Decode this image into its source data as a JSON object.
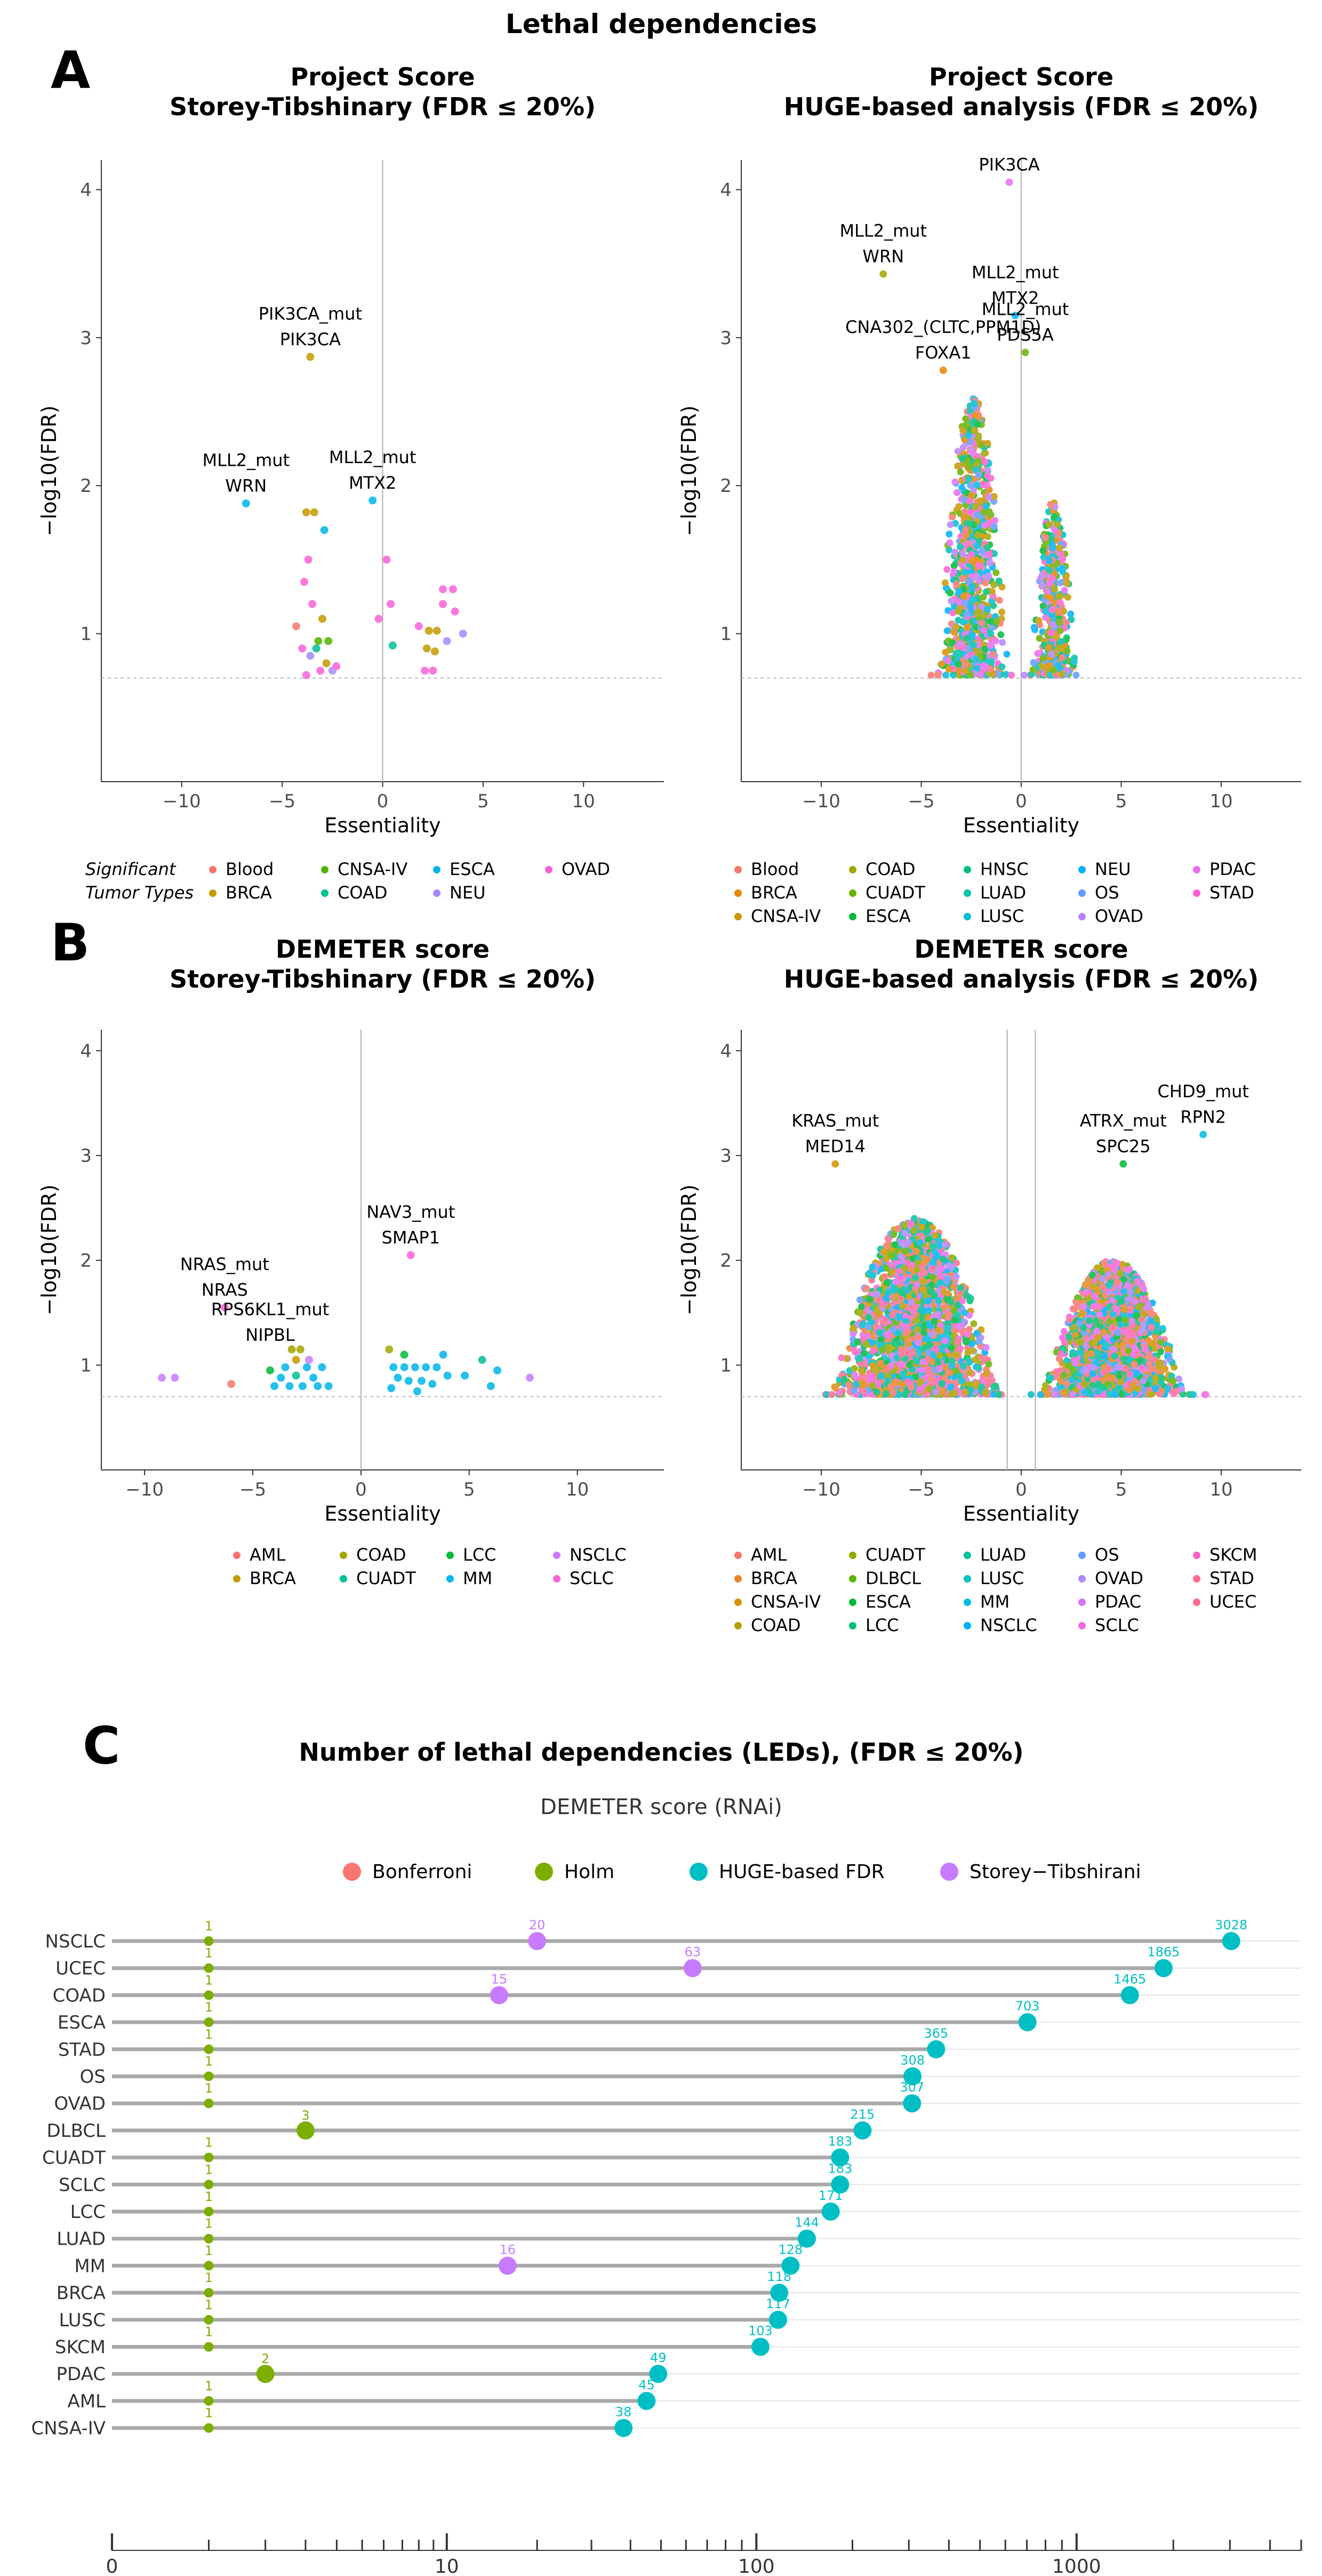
{
  "figure_title": "Lethal dependencies",
  "section_labels": [
    "A",
    "B",
    "C"
  ],
  "chart_data": [
    {
      "id": "A_left",
      "type": "scatter",
      "title": [
        "Project Score",
        "Storey-Tibshinary (FDR ≤ 20%)"
      ],
      "xlabel": "Essentiality",
      "ylabel": "−log10(FDR)",
      "xlim": [
        -14,
        14
      ],
      "ylim": [
        0,
        4.2
      ],
      "xticks": [
        -10,
        -5,
        0,
        5,
        10
      ],
      "yticks": [
        1,
        2,
        3,
        4
      ],
      "threshold": 0.7,
      "vline": 0,
      "annotations": [
        {
          "lines": [
            "PIK3CA_mut",
            "PIK3CA"
          ],
          "x": -3.6,
          "y": 2.87
        },
        {
          "lines": [
            "MLL2_mut",
            "WRN"
          ],
          "x": -6.8,
          "y": 1.88
        },
        {
          "lines": [
            "MLL2_mut",
            "MTX2"
          ],
          "x": -0.5,
          "y": 1.9
        }
      ],
      "points": [
        {
          "x": -3.6,
          "y": 2.87,
          "g": "BRCA"
        },
        {
          "x": -6.8,
          "y": 1.88,
          "g": "ESCA"
        },
        {
          "x": -0.5,
          "y": 1.9,
          "g": "ESCA"
        },
        {
          "x": -3.8,
          "y": 1.82,
          "g": "BRCA"
        },
        {
          "x": -3.4,
          "y": 1.82,
          "g": "BRCA"
        },
        {
          "x": -2.9,
          "y": 1.7,
          "g": "ESCA"
        },
        {
          "x": -3.7,
          "y": 1.5,
          "g": "OVAD"
        },
        {
          "x": -3.9,
          "y": 1.35,
          "g": "OVAD"
        },
        {
          "x": -4.3,
          "y": 1.05,
          "g": "Blood"
        },
        {
          "x": -3.5,
          "y": 1.2,
          "g": "OVAD"
        },
        {
          "x": -3.0,
          "y": 1.1,
          "g": "BRCA"
        },
        {
          "x": -3.2,
          "y": 0.95,
          "g": "CNSA-IV"
        },
        {
          "x": -2.7,
          "y": 0.95,
          "g": "CNSA-IV"
        },
        {
          "x": -3.3,
          "y": 0.9,
          "g": "COAD"
        },
        {
          "x": -3.6,
          "y": 0.85,
          "g": "NEU"
        },
        {
          "x": -2.8,
          "y": 0.8,
          "g": "BRCA"
        },
        {
          "x": -3.1,
          "y": 0.75,
          "g": "OVAD"
        },
        {
          "x": -3.8,
          "y": 0.72,
          "g": "OVAD"
        },
        {
          "x": -2.5,
          "y": 0.75,
          "g": "NEU"
        },
        {
          "x": -2.3,
          "y": 0.78,
          "g": "OVAD"
        },
        {
          "x": -4.0,
          "y": 0.9,
          "g": "OVAD"
        },
        {
          "x": 0.2,
          "y": 1.5,
          "g": "OVAD"
        },
        {
          "x": 0.4,
          "y": 1.2,
          "g": "OVAD"
        },
        {
          "x": -0.2,
          "y": 1.1,
          "g": "OVAD"
        },
        {
          "x": 0.5,
          "y": 0.92,
          "g": "COAD"
        },
        {
          "x": 1.8,
          "y": 1.05,
          "g": "OVAD"
        },
        {
          "x": 2.3,
          "y": 1.02,
          "g": "BRCA"
        },
        {
          "x": 2.7,
          "y": 1.02,
          "g": "BRCA"
        },
        {
          "x": 2.2,
          "y": 0.9,
          "g": "BRCA"
        },
        {
          "x": 2.6,
          "y": 0.88,
          "g": "BRCA"
        },
        {
          "x": 3.0,
          "y": 1.3,
          "g": "OVAD"
        },
        {
          "x": 3.5,
          "y": 1.3,
          "g": "OVAD"
        },
        {
          "x": 3.6,
          "y": 1.15,
          "g": "OVAD"
        },
        {
          "x": 3.2,
          "y": 0.95,
          "g": "NEU"
        },
        {
          "x": 2.1,
          "y": 0.75,
          "g": "OVAD"
        },
        {
          "x": 2.5,
          "y": 0.75,
          "g": "OVAD"
        },
        {
          "x": 4.0,
          "y": 1.0,
          "g": "NEU"
        },
        {
          "x": 3.0,
          "y": 1.2,
          "g": "OVAD"
        }
      ],
      "legend": {
        "title": [
          "Significant",
          "Tumor Types"
        ],
        "entries": [
          {
            "label": "Blood",
            "color": "#F8766D"
          },
          {
            "label": "BRCA",
            "color": "#C49A00"
          },
          {
            "label": "CNSA-IV",
            "color": "#53B400"
          },
          {
            "label": "COAD",
            "color": "#00C094"
          },
          {
            "label": "ESCA",
            "color": "#00B6EB"
          },
          {
            "label": "NEU",
            "color": "#A58AFF"
          },
          {
            "label": "OVAD",
            "color": "#FB61D7"
          }
        ]
      }
    },
    {
      "id": "A_right",
      "type": "scatter",
      "title": [
        "Project Score",
        "HUGE-based analysis (FDR ≤ 20%)"
      ],
      "xlabel": "Essentiality",
      "ylabel": "−log10(FDR)",
      "xlim": [
        -14,
        14
      ],
      "ylim": [
        0,
        4.2
      ],
      "xticks": [
        -10,
        -5,
        0,
        5,
        10
      ],
      "yticks": [
        1,
        2,
        3,
        4
      ],
      "threshold": 0.7,
      "vline": 0,
      "annotations": [
        {
          "lines": [
            "PIK3CA"
          ],
          "x": -0.6,
          "y": 4.05
        },
        {
          "lines": [
            "MLL2_mut",
            "WRN"
          ],
          "x": -6.9,
          "y": 3.43
        },
        {
          "lines": [
            "MLL2_mut",
            "MTX2"
          ],
          "x": -0.3,
          "y": 3.15
        },
        {
          "lines": [
            "CNA302_(CLTC,PPM1D)",
            "FOXA1"
          ],
          "x": -3.9,
          "y": 2.78
        },
        {
          "lines": [
            "MLL2_mut",
            "PDS5A"
          ],
          "x": 0.2,
          "y": 2.9
        }
      ],
      "clouds": [
        {
          "xc": -2.4,
          "spread": 1.1,
          "ymin": 0.72,
          "ymax": 2.6,
          "n": 900
        },
        {
          "xc": 1.6,
          "spread": 0.7,
          "ymin": 0.72,
          "ymax": 1.9,
          "n": 450
        }
      ],
      "legend": {
        "entries": [
          {
            "label": "Blood",
            "color": "#F8766D"
          },
          {
            "label": "BRCA",
            "color": "#E58700"
          },
          {
            "label": "CNSA-IV",
            "color": "#C99800"
          },
          {
            "label": "COAD",
            "color": "#A3A500"
          },
          {
            "label": "CUADT",
            "color": "#6BB100"
          },
          {
            "label": "ESCA",
            "color": "#00BA38"
          },
          {
            "label": "HNSC",
            "color": "#00BF7D"
          },
          {
            "label": "LUAD",
            "color": "#00C0AF"
          },
          {
            "label": "LUSC",
            "color": "#00BCD8"
          },
          {
            "label": "NEU",
            "color": "#00B0F6"
          },
          {
            "label": "OS",
            "color": "#619CFF"
          },
          {
            "label": "OVAD",
            "color": "#B983FF"
          },
          {
            "label": "PDAC",
            "color": "#E76BF3"
          },
          {
            "label": "STAD",
            "color": "#FD61D1"
          }
        ]
      }
    },
    {
      "id": "B_left",
      "type": "scatter",
      "title": [
        "DEMETER score",
        "Storey-Tibshinary (FDR ≤ 20%)"
      ],
      "xlabel": "Essentiality",
      "ylabel": "−log10(FDR)",
      "xlim": [
        -12,
        14
      ],
      "ylim": [
        0,
        4.2
      ],
      "xticks": [
        -10,
        -5,
        0,
        5,
        10
      ],
      "yticks": [
        1,
        2,
        3,
        4
      ],
      "threshold": 0.7,
      "vline": 0,
      "annotations": [
        {
          "lines": [
            "NRAS_mut",
            "NRAS"
          ],
          "x": -6.3,
          "y": 1.55
        },
        {
          "lines": [
            "RPS6KL1_mut",
            "NIPBL"
          ],
          "x": -4.2,
          "y": 1.12
        },
        {
          "lines": [
            "NAV3_mut",
            "SMAP1"
          ],
          "x": 2.3,
          "y": 2.05
        }
      ],
      "points": [
        {
          "x": -6.3,
          "y": 1.55,
          "g": "SCLC"
        },
        {
          "x": 2.3,
          "y": 2.05,
          "g": "SCLC"
        },
        {
          "x": -9.2,
          "y": 0.88,
          "g": "NSCLC"
        },
        {
          "x": -8.6,
          "y": 0.88,
          "g": "NSCLC"
        },
        {
          "x": -6.0,
          "y": 0.82,
          "g": "AML"
        },
        {
          "x": -4.0,
          "y": 0.8,
          "g": "MM"
        },
        {
          "x": -3.2,
          "y": 1.15,
          "g": "COAD"
        },
        {
          "x": -2.8,
          "y": 1.15,
          "g": "COAD"
        },
        {
          "x": -3.0,
          "y": 1.05,
          "g": "BRCA"
        },
        {
          "x": -3.5,
          "y": 0.98,
          "g": "MM"
        },
        {
          "x": -2.5,
          "y": 0.98,
          "g": "MM"
        },
        {
          "x": -3.7,
          "y": 0.88,
          "g": "MM"
        },
        {
          "x": -2.2,
          "y": 0.88,
          "g": "MM"
        },
        {
          "x": -1.8,
          "y": 0.98,
          "g": "MM"
        },
        {
          "x": -3.3,
          "y": 0.8,
          "g": "MM"
        },
        {
          "x": -2.7,
          "y": 0.8,
          "g": "MM"
        },
        {
          "x": -2.0,
          "y": 0.8,
          "g": "MM"
        },
        {
          "x": -1.5,
          "y": 0.8,
          "g": "MM"
        },
        {
          "x": -4.2,
          "y": 0.95,
          "g": "LCC"
        },
        {
          "x": -3.0,
          "y": 0.9,
          "g": "CUADT"
        },
        {
          "x": -2.4,
          "y": 1.05,
          "g": "NSCLC"
        },
        {
          "x": 1.3,
          "y": 1.15,
          "g": "COAD"
        },
        {
          "x": 1.5,
          "y": 0.98,
          "g": "MM"
        },
        {
          "x": 2.0,
          "y": 0.98,
          "g": "MM"
        },
        {
          "x": 2.5,
          "y": 0.98,
          "g": "MM"
        },
        {
          "x": 3.0,
          "y": 0.98,
          "g": "MM"
        },
        {
          "x": 3.5,
          "y": 0.98,
          "g": "MM"
        },
        {
          "x": 1.7,
          "y": 0.88,
          "g": "MM"
        },
        {
          "x": 2.2,
          "y": 0.85,
          "g": "MM"
        },
        {
          "x": 2.8,
          "y": 0.85,
          "g": "MM"
        },
        {
          "x": 3.3,
          "y": 0.82,
          "g": "MM"
        },
        {
          "x": 1.4,
          "y": 0.78,
          "g": "MM"
        },
        {
          "x": 2.6,
          "y": 0.75,
          "g": "MM"
        },
        {
          "x": 4.0,
          "y": 0.9,
          "g": "MM"
        },
        {
          "x": 4.8,
          "y": 0.9,
          "g": "MM"
        },
        {
          "x": 5.6,
          "y": 1.05,
          "g": "CUADT"
        },
        {
          "x": 6.3,
          "y": 0.95,
          "g": "MM"
        },
        {
          "x": 6.0,
          "y": 0.8,
          "g": "MM"
        },
        {
          "x": 7.8,
          "y": 0.88,
          "g": "NSCLC"
        },
        {
          "x": 3.8,
          "y": 1.1,
          "g": "MM"
        },
        {
          "x": 2.0,
          "y": 1.1,
          "g": "LCC"
        }
      ],
      "legend": {
        "entries": [
          {
            "label": "AML",
            "color": "#F8766D"
          },
          {
            "label": "BRCA",
            "color": "#C49A00"
          },
          {
            "label": "COAD",
            "color": "#A3A500"
          },
          {
            "label": "CUADT",
            "color": "#00C094"
          },
          {
            "label": "LCC",
            "color": "#00BA38"
          },
          {
            "label": "MM",
            "color": "#00B6EB"
          },
          {
            "label": "NSCLC",
            "color": "#C77CFF"
          },
          {
            "label": "SCLC",
            "color": "#FB61D7"
          }
        ]
      }
    },
    {
      "id": "B_right",
      "type": "scatter",
      "title": [
        "DEMETER score",
        "HUGE-based analysis (FDR ≤ 20%)"
      ],
      "xlabel": "Essentiality",
      "ylabel": "−log10(FDR)",
      "xlim": [
        -14,
        14
      ],
      "ylim": [
        0,
        4.2
      ],
      "xticks": [
        -10,
        -5,
        0,
        5,
        10
      ],
      "yticks": [
        1,
        2,
        3,
        4
      ],
      "threshold": 0.7,
      "vlines": [
        -0.7,
        0.7
      ],
      "annotations": [
        {
          "lines": [
            "KRAS_mut",
            "MED14"
          ],
          "x": -9.3,
          "y": 2.92
        },
        {
          "lines": [
            "ATRX_mut",
            "SPC25"
          ],
          "x": 5.1,
          "y": 2.92
        },
        {
          "lines": [
            "CHD9_mut",
            "RPN2"
          ],
          "x": 9.1,
          "y": 3.2
        }
      ],
      "clouds": [
        {
          "xc": -5.3,
          "spread": 2.6,
          "ymin": 0.72,
          "ymax": 2.4,
          "n": 2600
        },
        {
          "xc": 4.6,
          "spread": 2.2,
          "ymin": 0.72,
          "ymax": 2.0,
          "n": 2200
        }
      ],
      "legend": {
        "entries": [
          {
            "label": "AML",
            "color": "#F8766D"
          },
          {
            "label": "BRCA",
            "color": "#E88526"
          },
          {
            "label": "CNSA-IV",
            "color": "#D39200"
          },
          {
            "label": "COAD",
            "color": "#B79F00"
          },
          {
            "label": "CUADT",
            "color": "#93AA00"
          },
          {
            "label": "DLBCL",
            "color": "#5EB300"
          },
          {
            "label": "ESCA",
            "color": "#00BA38"
          },
          {
            "label": "LCC",
            "color": "#00BF74"
          },
          {
            "label": "LUAD",
            "color": "#00C19F"
          },
          {
            "label": "LUSC",
            "color": "#00BFC4"
          },
          {
            "label": "MM",
            "color": "#00B9E3"
          },
          {
            "label": "NSCLC",
            "color": "#00ADFA"
          },
          {
            "label": "OS",
            "color": "#619CFF"
          },
          {
            "label": "OVAD",
            "color": "#AE87FF"
          },
          {
            "label": "PDAC",
            "color": "#DB72FB"
          },
          {
            "label": "SCLC",
            "color": "#F564E3"
          },
          {
            "label": "SKCM",
            "color": "#FF61C3"
          },
          {
            "label": "STAD",
            "color": "#FF6C91"
          },
          {
            "label": "UCEC",
            "color": "#FF6C91"
          }
        ]
      }
    },
    {
      "id": "C",
      "type": "lollipop",
      "title": "Number of lethal dependencies (LEDs), (FDR ≤ 20%)",
      "subtitle": "DEMETER score (RNAi)",
      "xscale": "log1p",
      "xticks": [
        {
          "v": 0,
          "label": "0"
        },
        {
          "v": 10,
          "label": "10"
        },
        {
          "v": 100,
          "label": "100"
        },
        {
          "v": 1000,
          "label": "1000"
        }
      ],
      "legend": [
        {
          "label": "Bonferroni",
          "color": "#F8766D"
        },
        {
          "label": "Holm",
          "color": "#7CAE00"
        },
        {
          "label": "HUGE-based FDR",
          "color": "#00BFC4"
        },
        {
          "label": "Storey−Tibshirani",
          "color": "#C77CFF"
        }
      ],
      "categories": [
        "NSCLC",
        "UCEC",
        "COAD",
        "ESCA",
        "STAD",
        "OS",
        "OVAD",
        "DLBCL",
        "CUADT",
        "SCLC",
        "LCC",
        "LUAD",
        "MM",
        "BRCA",
        "LUSC",
        "SKCM",
        "PDAC",
        "AML",
        "CNSA-IV"
      ],
      "series": [
        {
          "name": "HUGE-based FDR",
          "values": [
            3028,
            1865,
            1465,
            703,
            365,
            308,
            307,
            215,
            183,
            183,
            171,
            144,
            128,
            118,
            117,
            103,
            49,
            45,
            38
          ]
        },
        {
          "name": "Storey−Tibshirani",
          "values": [
            20,
            63,
            15,
            null,
            null,
            null,
            null,
            null,
            null,
            null,
            null,
            null,
            16,
            null,
            null,
            null,
            null,
            null,
            null
          ]
        },
        {
          "name": "Holm",
          "values": [
            1,
            1,
            1,
            1,
            1,
            1,
            1,
            3,
            1,
            1,
            1,
            1,
            1,
            1,
            1,
            1,
            2,
            1,
            1
          ]
        }
      ]
    }
  ]
}
